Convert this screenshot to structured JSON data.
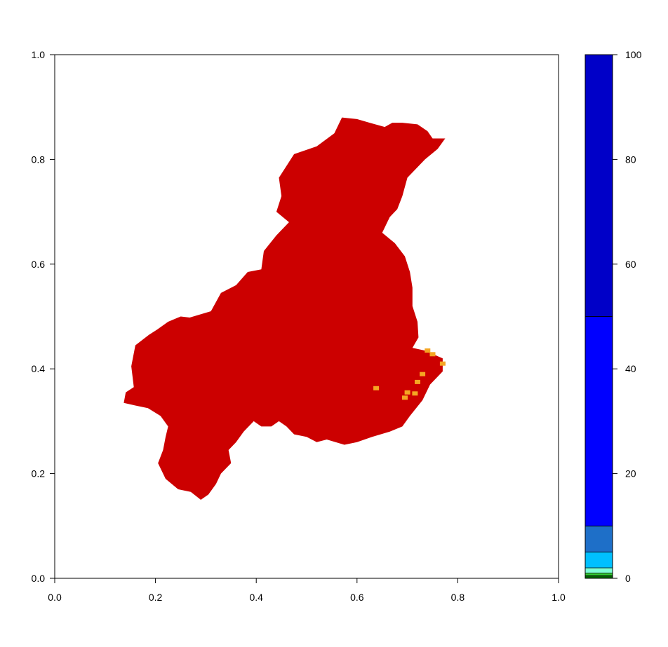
{
  "chart_data": {
    "type": "heatmap",
    "title": "",
    "xlabel": "",
    "ylabel": "",
    "xlim": [
      0,
      1
    ],
    "ylim": [
      0,
      1
    ],
    "x_ticks": [
      "0.0",
      "0.2",
      "0.4",
      "0.6",
      "0.8",
      "1.0"
    ],
    "y_ticks": [
      "0.0",
      "0.2",
      "0.4",
      "0.6",
      "0.8",
      "1.0"
    ],
    "x_tick_values": [
      0,
      0.2,
      0.4,
      0.6,
      0.8,
      1.0
    ],
    "y_tick_values": [
      0,
      0.2,
      0.4,
      0.6,
      0.8,
      1.0
    ],
    "grid": false,
    "legend_placement": "right",
    "region": {
      "fill": "#cc0000",
      "outline": [
        [
          0.137,
          0.335
        ],
        [
          0.141,
          0.355
        ],
        [
          0.157,
          0.365
        ],
        [
          0.152,
          0.405
        ],
        [
          0.16,
          0.445
        ],
        [
          0.187,
          0.465
        ],
        [
          0.203,
          0.475
        ],
        [
          0.225,
          0.49
        ],
        [
          0.25,
          0.5
        ],
        [
          0.268,
          0.498
        ],
        [
          0.31,
          0.51
        ],
        [
          0.33,
          0.545
        ],
        [
          0.36,
          0.56
        ],
        [
          0.383,
          0.585
        ],
        [
          0.41,
          0.59
        ],
        [
          0.415,
          0.625
        ],
        [
          0.44,
          0.655
        ],
        [
          0.465,
          0.68
        ],
        [
          0.44,
          0.7
        ],
        [
          0.45,
          0.73
        ],
        [
          0.445,
          0.765
        ],
        [
          0.475,
          0.81
        ],
        [
          0.52,
          0.825
        ],
        [
          0.555,
          0.85
        ],
        [
          0.57,
          0.88
        ],
        [
          0.6,
          0.877
        ],
        [
          0.625,
          0.87
        ],
        [
          0.655,
          0.862
        ],
        [
          0.67,
          0.87
        ],
        [
          0.69,
          0.87
        ],
        [
          0.72,
          0.867
        ],
        [
          0.74,
          0.854
        ],
        [
          0.75,
          0.84
        ],
        [
          0.775,
          0.84
        ],
        [
          0.76,
          0.82
        ],
        [
          0.735,
          0.8
        ],
        [
          0.7,
          0.765
        ],
        [
          0.69,
          0.73
        ],
        [
          0.68,
          0.705
        ],
        [
          0.665,
          0.69
        ],
        [
          0.65,
          0.66
        ],
        [
          0.675,
          0.64
        ],
        [
          0.695,
          0.615
        ],
        [
          0.705,
          0.585
        ],
        [
          0.71,
          0.555
        ],
        [
          0.71,
          0.52
        ],
        [
          0.72,
          0.49
        ],
        [
          0.722,
          0.46
        ],
        [
          0.71,
          0.44
        ],
        [
          0.735,
          0.435
        ],
        [
          0.77,
          0.42
        ],
        [
          0.77,
          0.395
        ],
        [
          0.745,
          0.37
        ],
        [
          0.73,
          0.34
        ],
        [
          0.705,
          0.31
        ],
        [
          0.69,
          0.29
        ],
        [
          0.665,
          0.28
        ],
        [
          0.63,
          0.27
        ],
        [
          0.6,
          0.26
        ],
        [
          0.575,
          0.255
        ],
        [
          0.54,
          0.265
        ],
        [
          0.52,
          0.26
        ],
        [
          0.5,
          0.27
        ],
        [
          0.475,
          0.275
        ],
        [
          0.46,
          0.29
        ],
        [
          0.445,
          0.3
        ],
        [
          0.43,
          0.29
        ],
        [
          0.41,
          0.29
        ],
        [
          0.395,
          0.3
        ],
        [
          0.375,
          0.28
        ],
        [
          0.36,
          0.26
        ],
        [
          0.345,
          0.245
        ],
        [
          0.35,
          0.22
        ],
        [
          0.33,
          0.2
        ],
        [
          0.32,
          0.18
        ],
        [
          0.305,
          0.16
        ],
        [
          0.29,
          0.15
        ],
        [
          0.27,
          0.165
        ],
        [
          0.245,
          0.17
        ],
        [
          0.22,
          0.19
        ],
        [
          0.205,
          0.22
        ],
        [
          0.215,
          0.245
        ],
        [
          0.22,
          0.27
        ],
        [
          0.225,
          0.29
        ],
        [
          0.21,
          0.31
        ],
        [
          0.185,
          0.325
        ],
        [
          0.16,
          0.33
        ]
      ],
      "patches": [
        {
          "x": 0.74,
          "y": 0.435,
          "fill": "#f5a623"
        },
        {
          "x": 0.75,
          "y": 0.428,
          "fill": "#f5a623"
        },
        {
          "x": 0.73,
          "y": 0.39,
          "fill": "#f5a623"
        },
        {
          "x": 0.72,
          "y": 0.375,
          "fill": "#f5a623"
        },
        {
          "x": 0.7,
          "y": 0.355,
          "fill": "#f5a623"
        },
        {
          "x": 0.715,
          "y": 0.353,
          "fill": "#f5a623"
        },
        {
          "x": 0.638,
          "y": 0.363,
          "fill": "#f5a623"
        },
        {
          "x": 0.695,
          "y": 0.345,
          "fill": "#f5a623"
        },
        {
          "x": 0.77,
          "y": 0.41,
          "fill": "#f5a623"
        }
      ]
    },
    "colorbar": {
      "ticks": [
        "0",
        "20",
        "40",
        "60",
        "80",
        "100"
      ],
      "tick_values": [
        0,
        20,
        40,
        60,
        80,
        100
      ],
      "range": [
        0,
        100
      ],
      "bins": [
        {
          "from": 0,
          "to": 0.5,
          "color": "#006400"
        },
        {
          "from": 0.5,
          "to": 1,
          "color": "#32cd32"
        },
        {
          "from": 1,
          "to": 2,
          "color": "#7fffd4"
        },
        {
          "from": 2,
          "to": 5,
          "color": "#00bfff"
        },
        {
          "from": 5,
          "to": 10,
          "color": "#1e6fc8"
        },
        {
          "from": 10,
          "to": 50,
          "color": "#0000ff"
        },
        {
          "from": 50,
          "to": 100,
          "color": "#0000c8"
        }
      ]
    }
  }
}
